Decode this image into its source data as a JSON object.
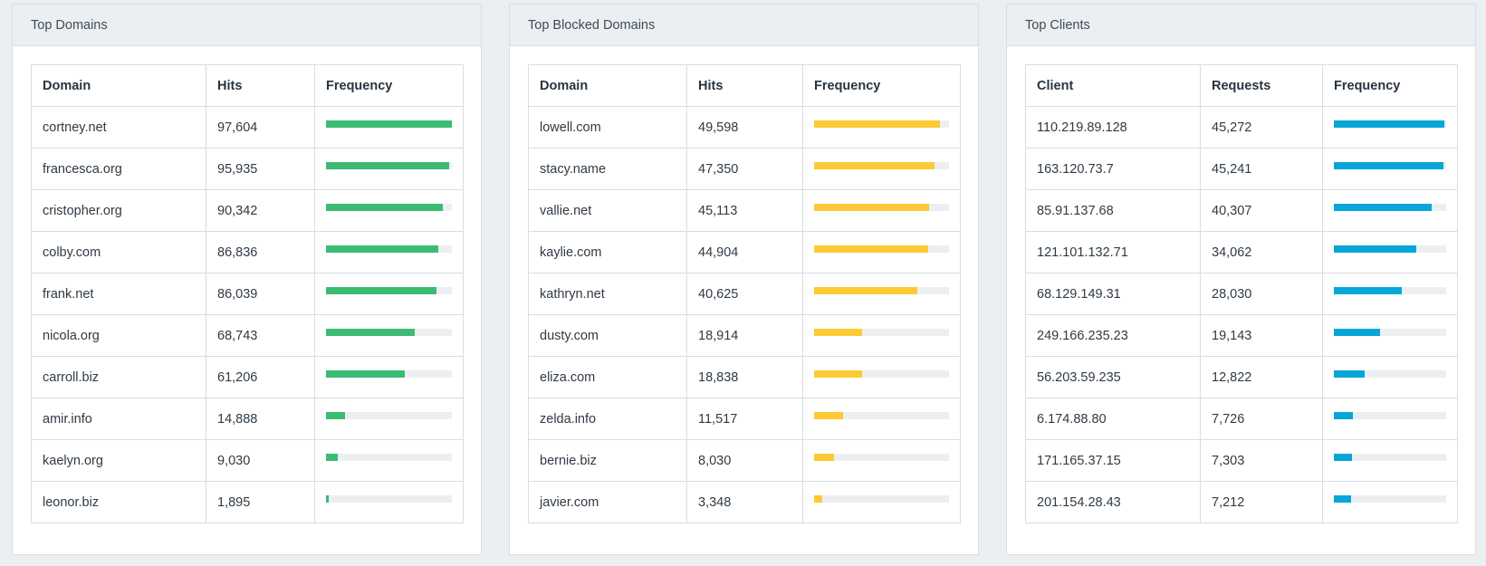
{
  "panels": [
    {
      "title": "Top Domains",
      "columns": [
        "Domain",
        "Hits",
        "Frequency"
      ],
      "color": "#3cbb75",
      "rows": [
        {
          "name": "cortney.net",
          "value": "97,604",
          "fraction": 1.0
        },
        {
          "name": "francesca.org",
          "value": "95,935",
          "fraction": 0.98
        },
        {
          "name": "cristopher.org",
          "value": "90,342",
          "fraction": 0.925
        },
        {
          "name": "colby.com",
          "value": "86,836",
          "fraction": 0.89
        },
        {
          "name": "frank.net",
          "value": "86,039",
          "fraction": 0.88
        },
        {
          "name": "nicola.org",
          "value": "68,743",
          "fraction": 0.705
        },
        {
          "name": "carroll.biz",
          "value": "61,206",
          "fraction": 0.627
        },
        {
          "name": "amir.info",
          "value": "14,888",
          "fraction": 0.153
        },
        {
          "name": "kaelyn.org",
          "value": "9,030",
          "fraction": 0.093
        },
        {
          "name": "leonor.biz",
          "value": "1,895",
          "fraction": 0.019
        }
      ]
    },
    {
      "title": "Top Blocked Domains",
      "columns": [
        "Domain",
        "Hits",
        "Frequency"
      ],
      "color": "#fdc935",
      "rows": [
        {
          "name": "lowell.com",
          "value": "49,598",
          "fraction": 0.935
        },
        {
          "name": "stacy.name",
          "value": "47,350",
          "fraction": 0.89
        },
        {
          "name": "vallie.net",
          "value": "45,113",
          "fraction": 0.85
        },
        {
          "name": "kaylie.com",
          "value": "44,904",
          "fraction": 0.846
        },
        {
          "name": "kathryn.net",
          "value": "40,625",
          "fraction": 0.766
        },
        {
          "name": "dusty.com",
          "value": "18,914",
          "fraction": 0.357
        },
        {
          "name": "eliza.com",
          "value": "18,838",
          "fraction": 0.355
        },
        {
          "name": "zelda.info",
          "value": "11,517",
          "fraction": 0.217
        },
        {
          "name": "bernie.biz",
          "value": "8,030",
          "fraction": 0.151
        },
        {
          "name": "javier.com",
          "value": "3,348",
          "fraction": 0.063
        }
      ]
    },
    {
      "title": "Top Clients",
      "columns": [
        "Client",
        "Requests",
        "Frequency"
      ],
      "color": "#07a6d8",
      "rows": [
        {
          "name": "110.219.89.128",
          "value": "45,272",
          "fraction": 0.98
        },
        {
          "name": "163.120.73.7",
          "value": "45,241",
          "fraction": 0.979
        },
        {
          "name": "85.91.137.68",
          "value": "40,307",
          "fraction": 0.872
        },
        {
          "name": "121.101.132.71",
          "value": "34,062",
          "fraction": 0.737
        },
        {
          "name": "68.129.149.31",
          "value": "28,030",
          "fraction": 0.606
        },
        {
          "name": "249.166.235.23",
          "value": "19,143",
          "fraction": 0.414
        },
        {
          "name": "56.203.59.235",
          "value": "12,822",
          "fraction": 0.277
        },
        {
          "name": "6.174.88.80",
          "value": "7,726",
          "fraction": 0.167
        },
        {
          "name": "171.165.37.15",
          "value": "7,303",
          "fraction": 0.158
        },
        {
          "name": "201.154.28.43",
          "value": "7,212",
          "fraction": 0.156
        }
      ]
    }
  ]
}
